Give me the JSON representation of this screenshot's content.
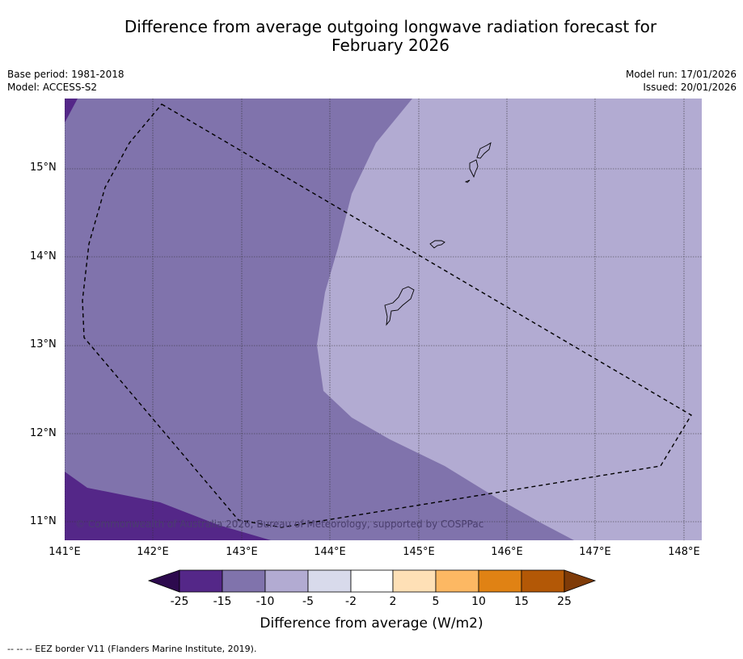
{
  "title_line1": "Difference from average outgoing longwave radiation forecast for",
  "title_line2": "February 2026",
  "meta_left": {
    "line1": "Base period: 1981-2018",
    "line2": "Model: ACCESS-S2"
  },
  "meta_right": {
    "line1": "Model run: 17/01/2026",
    "line2": "Issued: 20/01/2026"
  },
  "lat_labels": [
    "15°N",
    "14°N",
    "13°N",
    "12°N",
    "11°N"
  ],
  "lon_labels": [
    "141°E",
    "142°E",
    "143°E",
    "144°E",
    "145°E",
    "146°E",
    "147°E",
    "148°E"
  ],
  "copyright": "© Commonwealth of Australia 2026, Bureau of Meteorology, supported by COSPPac",
  "colorbar": {
    "labels": [
      "-25",
      "-15",
      "-10",
      "-5",
      "-2",
      "2",
      "5",
      "10",
      "15",
      "25"
    ],
    "colors": [
      "#2d0a4e",
      "#542788",
      "#8073ac",
      "#b2abd2",
      "#d8daeb",
      "#ffffff",
      "#fee0b6",
      "#fdb863",
      "#e08214",
      "#b35806",
      "#7f3b08"
    ],
    "title": "Difference from average (W/m2)"
  },
  "footnote": "--  --  -- EEZ border V11 (Flanders Marine Institute, 2019).",
  "map_data": {
    "lon_range": [
      141,
      148.2
    ],
    "lat_range": [
      10.8,
      15.8
    ],
    "field_colors": {
      "strong_negative": "#542788",
      "moderate_negative": "#8073ac",
      "weak_negative": "#b2abd2"
    }
  }
}
